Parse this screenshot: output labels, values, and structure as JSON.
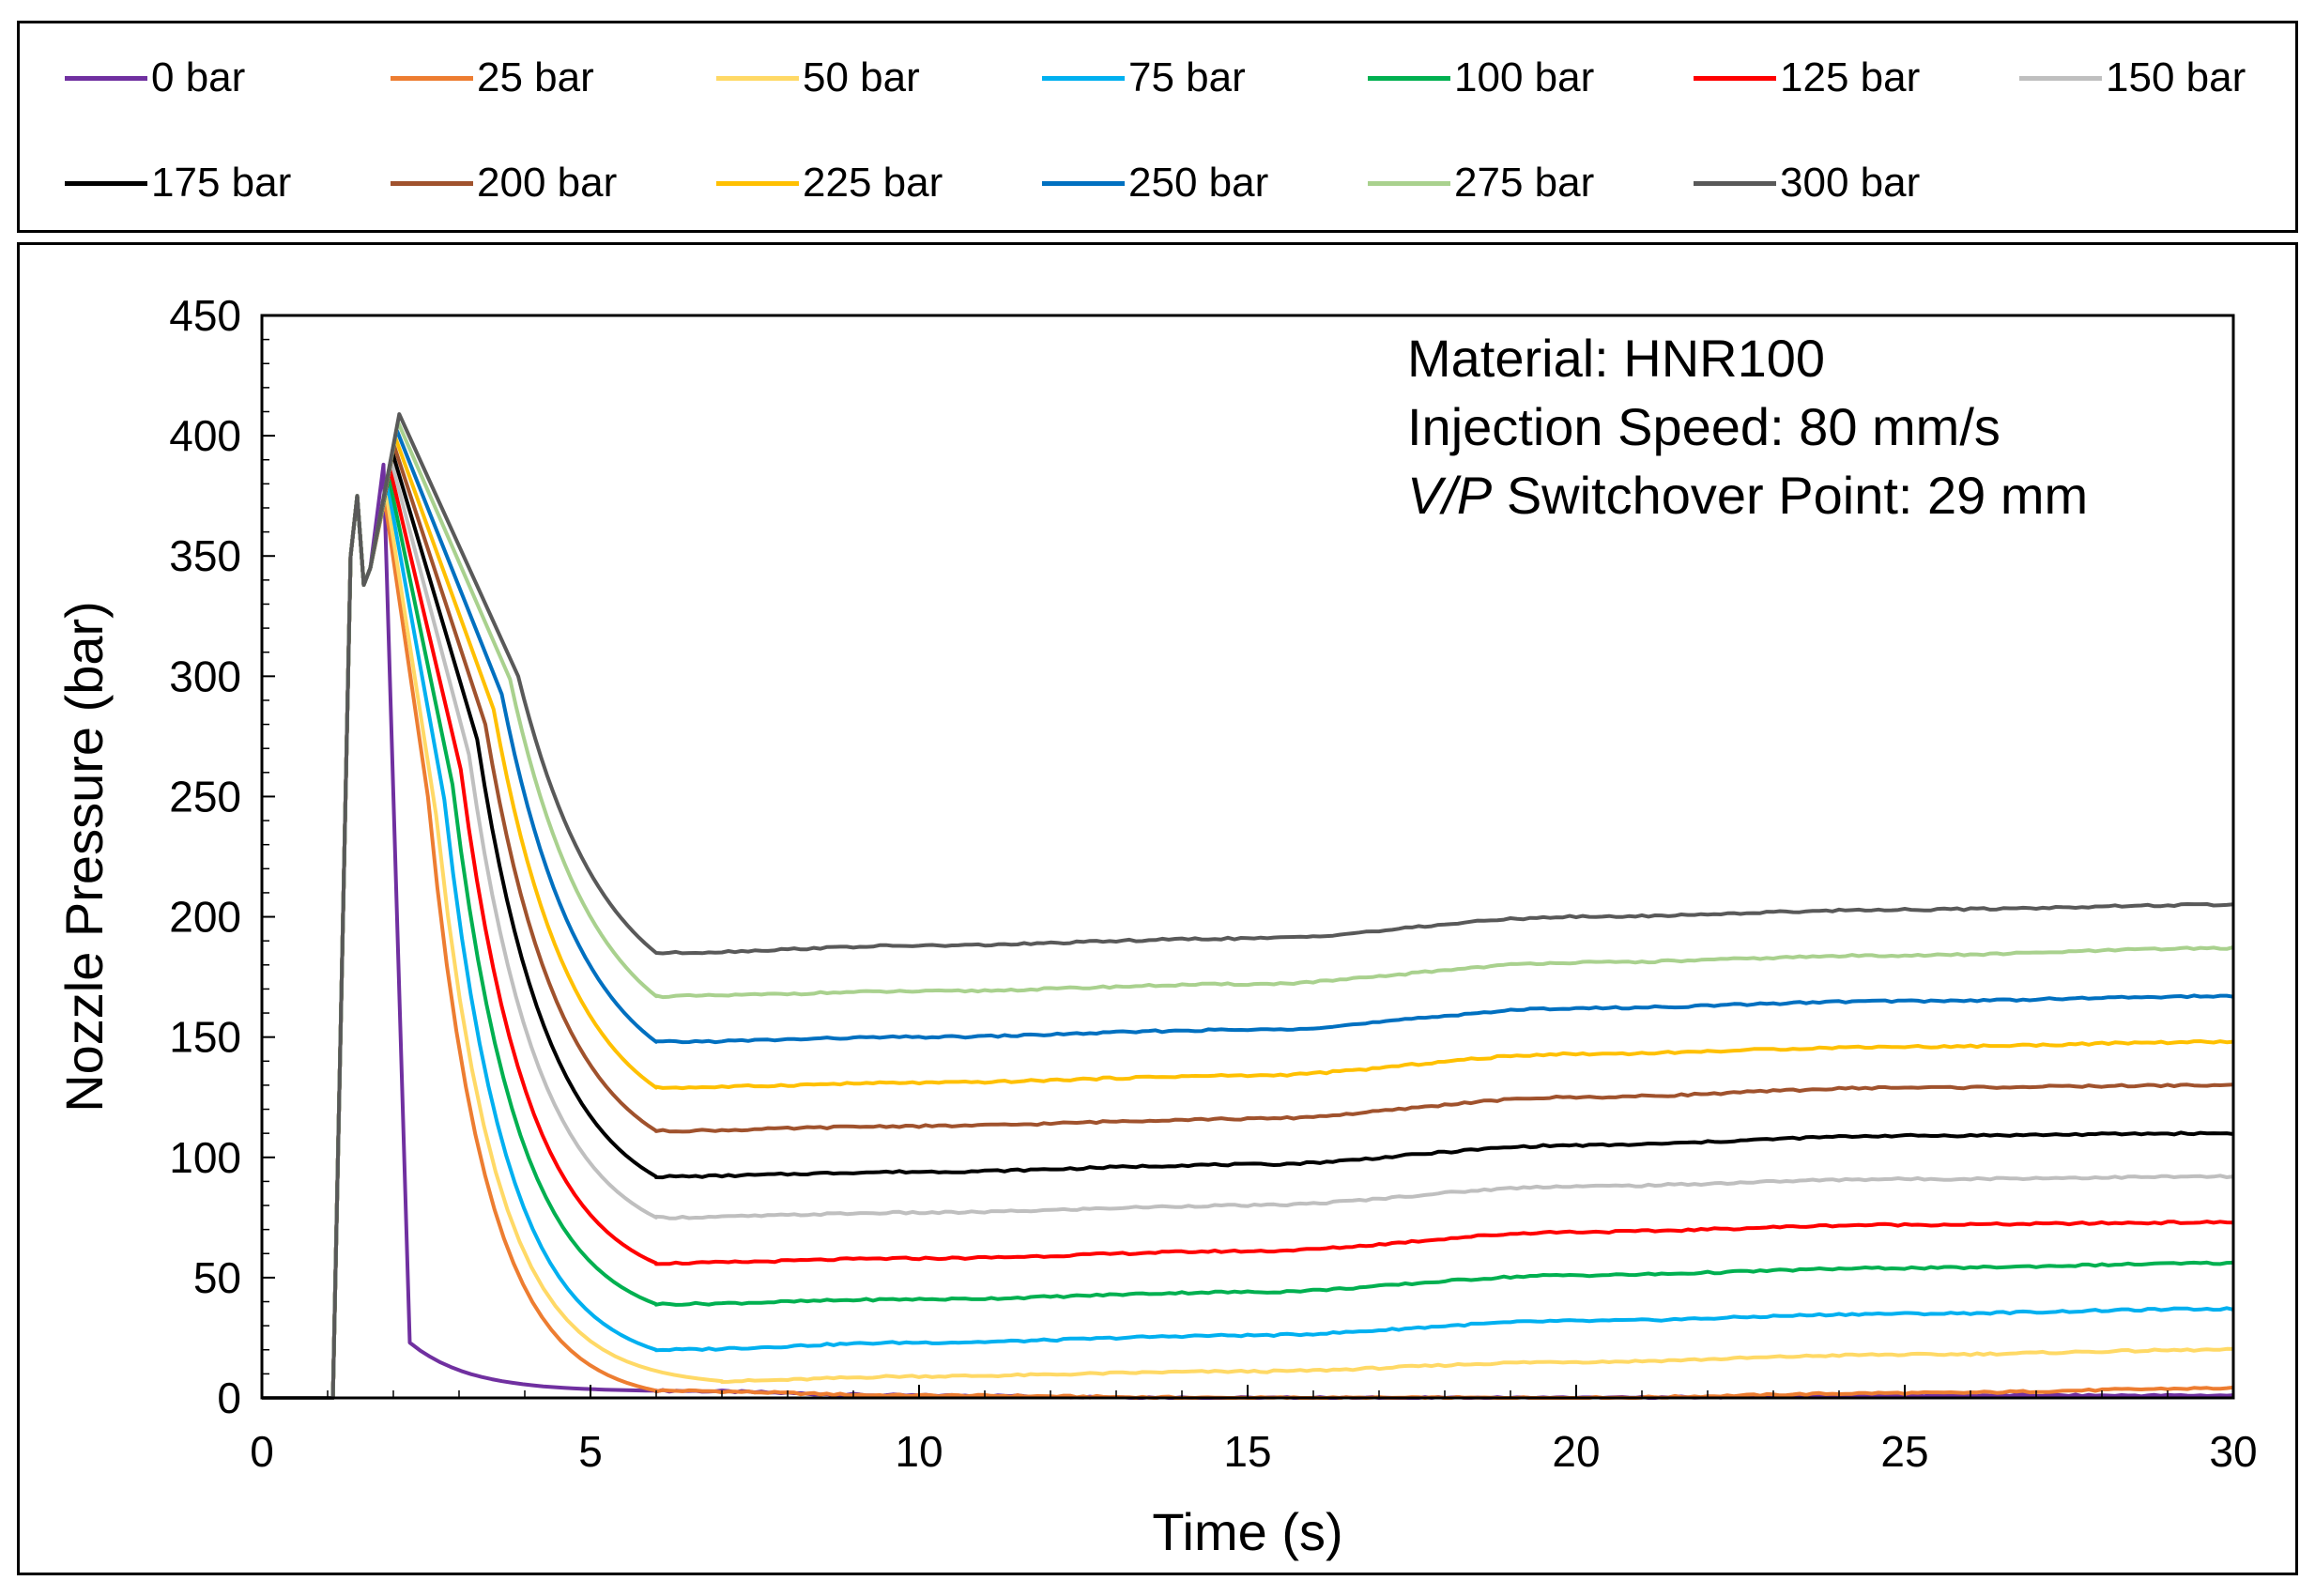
{
  "chart_data": {
    "type": "line",
    "xlabel": "Time (s)",
    "ylabel": "Nozzle Pressure (bar)",
    "xlim": [
      0,
      30
    ],
    "ylim": [
      0,
      450
    ],
    "xticks": [
      "0",
      "5",
      "10",
      "15",
      "20",
      "25",
      "30"
    ],
    "yticks": [
      "0",
      "50",
      "100",
      "150",
      "200",
      "250",
      "300",
      "350",
      "400",
      "450"
    ],
    "legend_position": "top (separate box)",
    "annotations": [
      {
        "prefix": "",
        "text": "Material: HNR100"
      },
      {
        "prefix": "",
        "text": "Injection Speed: 80 mm/s"
      },
      {
        "prefix": "V/P",
        "text": " Switchover Point: 29 mm"
      }
    ],
    "series": [
      {
        "name": "0 bar",
        "color": "#7030a0",
        "holding_pressure": 0,
        "plateau": [
          [
            6,
            3
          ],
          [
            10,
            1
          ],
          [
            15,
            0
          ],
          [
            20,
            0
          ],
          [
            25,
            1
          ],
          [
            30,
            1
          ]
        ]
      },
      {
        "name": "25 bar",
        "color": "#ed7d31",
        "holding_pressure": 25,
        "plateau": [
          [
            6,
            3
          ],
          [
            10,
            1
          ],
          [
            15,
            0
          ],
          [
            20,
            0
          ],
          [
            25,
            2
          ],
          [
            30,
            4
          ]
        ]
      },
      {
        "name": "50 bar",
        "color": "#ffd966",
        "holding_pressure": 50,
        "plateau": [
          [
            7,
            7
          ],
          [
            10,
            9
          ],
          [
            15,
            11
          ],
          [
            20,
            15
          ],
          [
            25,
            18
          ],
          [
            30,
            20
          ]
        ]
      },
      {
        "name": "75 bar",
        "color": "#00b0f0",
        "holding_pressure": 75,
        "plateau": [
          [
            6,
            20
          ],
          [
            10,
            23
          ],
          [
            15,
            26
          ],
          [
            20,
            32
          ],
          [
            25,
            35
          ],
          [
            30,
            37
          ]
        ]
      },
      {
        "name": "100 bar",
        "color": "#00b050",
        "holding_pressure": 100,
        "plateau": [
          [
            6,
            39
          ],
          [
            10,
            41
          ],
          [
            15,
            44
          ],
          [
            20,
            51
          ],
          [
            25,
            54
          ],
          [
            30,
            56
          ]
        ]
      },
      {
        "name": "125 bar",
        "color": "#ff0000",
        "holding_pressure": 125,
        "plateau": [
          [
            6,
            56
          ],
          [
            10,
            58
          ],
          [
            15,
            61
          ],
          [
            20,
            69
          ],
          [
            25,
            72
          ],
          [
            30,
            73
          ]
        ]
      },
      {
        "name": "150 bar",
        "color": "#bfbfbf",
        "holding_pressure": 150,
        "plateau": [
          [
            6,
            75
          ],
          [
            10,
            77
          ],
          [
            15,
            80
          ],
          [
            20,
            88
          ],
          [
            25,
            91
          ],
          [
            30,
            92
          ]
        ]
      },
      {
        "name": "175 bar",
        "color": "#000000",
        "holding_pressure": 175,
        "plateau": [
          [
            6,
            92
          ],
          [
            10,
            94
          ],
          [
            15,
            97
          ],
          [
            20,
            105
          ],
          [
            25,
            109
          ],
          [
            30,
            110
          ]
        ]
      },
      {
        "name": "200 bar",
        "color": "#a0522d",
        "holding_pressure": 200,
        "plateau": [
          [
            6,
            111
          ],
          [
            10,
            113
          ],
          [
            15,
            116
          ],
          [
            20,
            125
          ],
          [
            25,
            129
          ],
          [
            30,
            130
          ]
        ]
      },
      {
        "name": "225 bar",
        "color": "#ffc000",
        "holding_pressure": 225,
        "plateau": [
          [
            6,
            129
          ],
          [
            10,
            131
          ],
          [
            15,
            134
          ],
          [
            20,
            143
          ],
          [
            25,
            146
          ],
          [
            30,
            148
          ]
        ]
      },
      {
        "name": "250 bar",
        "color": "#0070c0",
        "holding_pressure": 250,
        "plateau": [
          [
            6,
            148
          ],
          [
            10,
            150
          ],
          [
            15,
            153
          ],
          [
            20,
            162
          ],
          [
            25,
            165
          ],
          [
            30,
            167
          ]
        ]
      },
      {
        "name": "275 bar",
        "color": "#a9d18e",
        "holding_pressure": 275,
        "plateau": [
          [
            6,
            167
          ],
          [
            10,
            169
          ],
          [
            15,
            172
          ],
          [
            20,
            181
          ],
          [
            25,
            184
          ],
          [
            30,
            187
          ]
        ]
      },
      {
        "name": "300 bar",
        "color": "#595959",
        "holding_pressure": 300,
        "plateau": [
          [
            6,
            185
          ],
          [
            10,
            188
          ],
          [
            15,
            191
          ],
          [
            20,
            200
          ],
          [
            25,
            203
          ],
          [
            30,
            205
          ]
        ]
      }
    ]
  }
}
